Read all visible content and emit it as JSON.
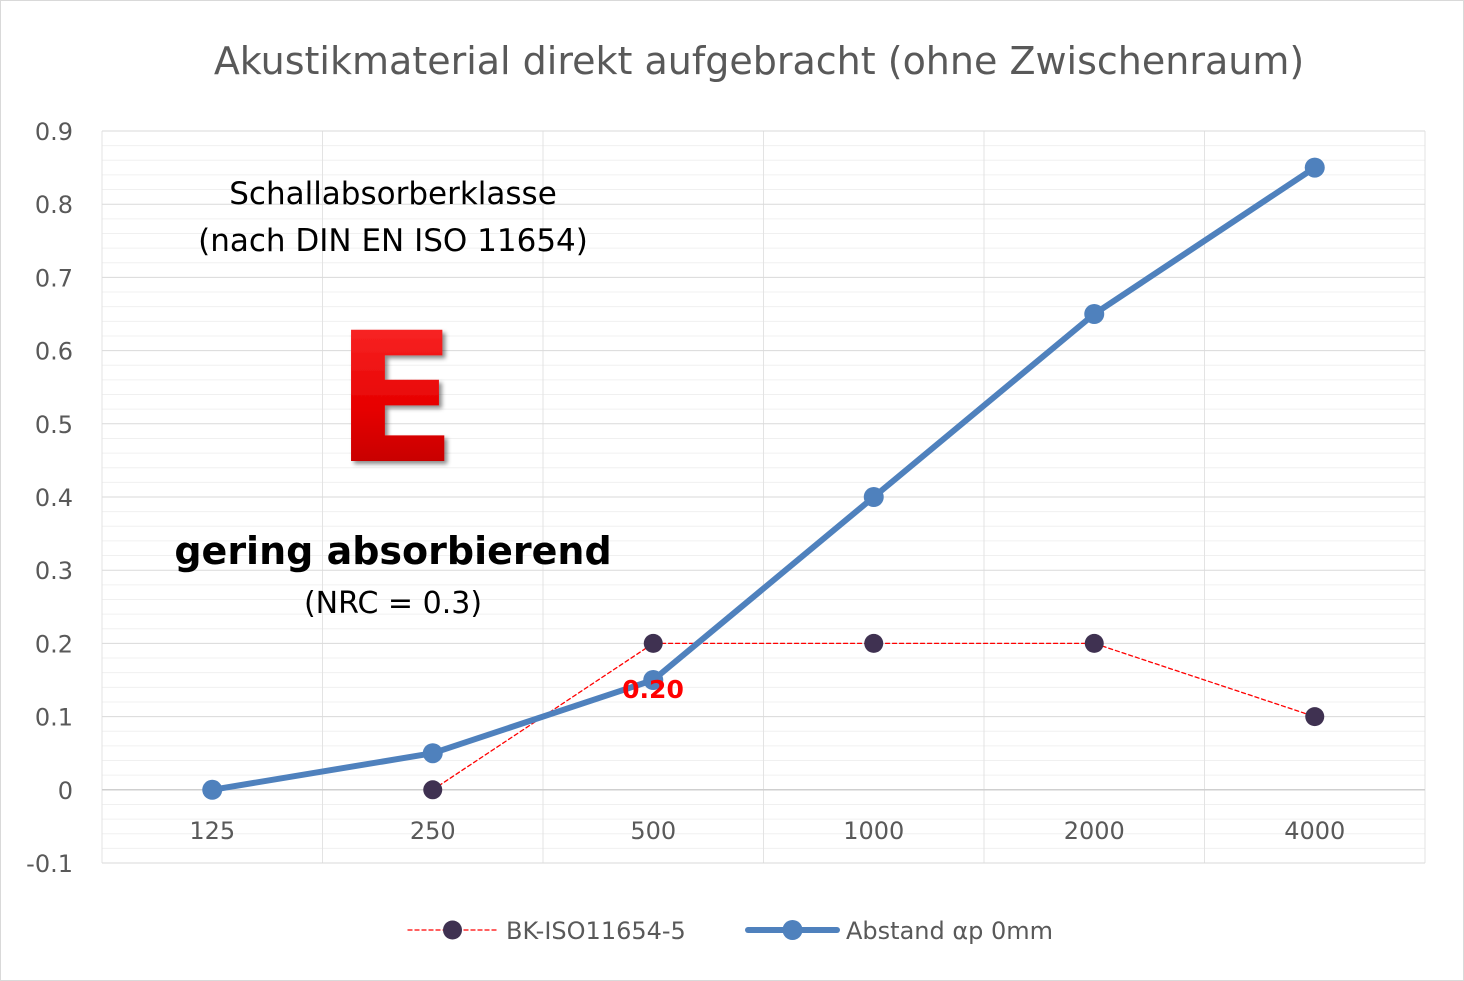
{
  "chart_data": {
    "type": "line",
    "title": "Akustikmaterial direkt aufgebracht (ohne Zwischenraum)",
    "xlabel": "",
    "ylabel": "",
    "categories": [
      "125",
      "250",
      "500",
      "1000",
      "2000",
      "4000"
    ],
    "ylim": [
      -0.1,
      0.9
    ],
    "y_ticks": [
      -0.1,
      0,
      0.1,
      0.2,
      0.3,
      0.4,
      0.5,
      0.6,
      0.7,
      0.8,
      0.9
    ],
    "y_tick_labels": [
      "-0.1",
      "0",
      "0.1",
      "0.2",
      "0.3",
      "0.4",
      "0.5",
      "0.6",
      "0.7",
      "0.8",
      "0.9"
    ],
    "grid": true,
    "legend_position": "bottom",
    "series": [
      {
        "name": "BK-ISO11654-5",
        "values": [
          null,
          0,
          0.2,
          0.2,
          0.2,
          0.1
        ],
        "line_color": "#ff0000",
        "marker_color": "#3f3151",
        "line_style": "dashed"
      },
      {
        "name": "Abstand  αp 0mm",
        "values": [
          0,
          0.05,
          0.15,
          0.4,
          0.65,
          0.85
        ],
        "line_color": "#4f81bd",
        "marker_color": "#4f81bd",
        "line_style": "solid"
      }
    ],
    "annotations": {
      "class_heading_line1": "Schallabsorberklasse",
      "class_heading_line2": "(nach DIN EN ISO 11654)",
      "class_letter": "E",
      "class_description": "gering absorbierend",
      "nrc_text": "(NRC = 0.3)",
      "point_label": "0.20",
      "class_letter_color": "#ff0000",
      "point_label_color": "#ff0000"
    }
  }
}
